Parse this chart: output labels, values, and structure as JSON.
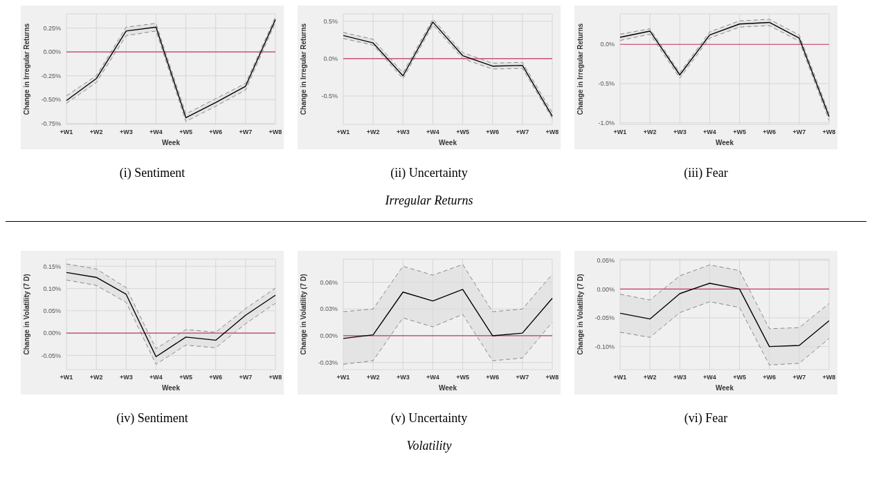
{
  "chart_data": [
    {
      "type": "line",
      "xlabel": "Week",
      "ylabel": "Change in Irregular Returns",
      "categories": [
        "+W1",
        "+W2",
        "+W3",
        "+W4",
        "+W5",
        "+W6",
        "+W7",
        "+W8"
      ],
      "ylim": [
        -0.76,
        0.4
      ],
      "yticks": [
        {
          "value": -0.75,
          "label": "-0.75%"
        },
        {
          "value": -0.5,
          "label": "-0.50%"
        },
        {
          "value": -0.25,
          "label": "-0.25%"
        },
        {
          "value": 0,
          "label": "0.00%"
        },
        {
          "value": 0.25,
          "label": "0.25%"
        }
      ],
      "grid": true,
      "marker": "none",
      "line_style": "solid",
      "ref_lines": [
        {
          "axis": "y",
          "value": 0,
          "color": "#c8336a"
        }
      ],
      "annotations": [
        "(i) Sentiment"
      ],
      "series": [
        {
          "color": "#000000",
          "values": [
            -0.51,
            -0.28,
            0.22,
            0.26,
            -0.69,
            -0.53,
            -0.36,
            0.34
          ],
          "lower": [
            -0.54,
            -0.32,
            0.17,
            0.22,
            -0.73,
            -0.57,
            -0.4,
            0.31
          ],
          "upper": [
            -0.46,
            -0.25,
            0.26,
            0.3,
            -0.65,
            -0.49,
            -0.33,
            0.37
          ]
        },
        {
          "type": "line",
          "color": "#888888",
          "line_style": "dashed",
          "values": [
            -0.54,
            -0.32,
            0.17,
            0.22,
            -0.73,
            -0.57,
            -0.4,
            0.31
          ]
        },
        {
          "type": "line",
          "color": "#888888",
          "line_style": "dashed",
          "values": [
            -0.46,
            -0.25,
            0.26,
            0.3,
            -0.65,
            -0.49,
            -0.33,
            0.37
          ]
        }
      ]
    },
    {
      "type": "line",
      "xlabel": "Week",
      "ylabel": "Change in Irregular Returns",
      "categories": [
        "+W1",
        "+W2",
        "+W3",
        "+W4",
        "+W5",
        "+W6",
        "+W7",
        "+W8"
      ],
      "ylim": [
        -0.88,
        0.6
      ],
      "yticks": [
        {
          "value": -0.5,
          "label": "-0.5%"
        },
        {
          "value": 0,
          "label": "0.0%"
        },
        {
          "value": 0.5,
          "label": "0.5%"
        }
      ],
      "grid": true,
      "marker": "none",
      "line_style": "solid",
      "ref_lines": [
        {
          "axis": "y",
          "value": 0,
          "color": "#c8336a"
        }
      ],
      "annotations": [
        "(ii) Uncertainty",
        "Irregular Returns"
      ],
      "series": [
        {
          "color": "#000000",
          "values": [
            0.31,
            0.21,
            -0.23,
            0.49,
            0.04,
            -0.1,
            -0.09,
            -0.77
          ],
          "lower": [
            0.27,
            0.18,
            -0.27,
            0.45,
            0.0,
            -0.14,
            -0.13,
            -0.8
          ],
          "upper": [
            0.35,
            0.26,
            -0.19,
            0.53,
            0.08,
            -0.06,
            -0.05,
            -0.72
          ]
        },
        {
          "type": "line",
          "color": "#888888",
          "line_style": "dashed",
          "values": [
            0.27,
            0.18,
            -0.27,
            0.45,
            0.0,
            -0.14,
            -0.13,
            -0.8
          ]
        },
        {
          "type": "line",
          "color": "#888888",
          "line_style": "dashed",
          "values": [
            0.35,
            0.26,
            -0.19,
            0.53,
            0.08,
            -0.06,
            -0.05,
            -0.72
          ]
        }
      ]
    },
    {
      "type": "line",
      "xlabel": "Week",
      "ylabel": "Change in Irregular Returns",
      "categories": [
        "+W1",
        "+W2",
        "+W3",
        "+W4",
        "+W5",
        "+W6",
        "+W7",
        "+W8"
      ],
      "ylim": [
        -1.02,
        0.39
      ],
      "yticks": [
        {
          "value": -1,
          "label": "-1.0%"
        },
        {
          "value": -0.5,
          "label": "-0.5%"
        },
        {
          "value": 0,
          "label": "0.0%"
        }
      ],
      "grid": true,
      "marker": "none",
      "line_style": "solid",
      "ref_lines": [
        {
          "axis": "y",
          "value": 0,
          "color": "#c8336a"
        }
      ],
      "annotations": [
        "(iii) Fear"
      ],
      "series": [
        {
          "color": "#000000",
          "values": [
            0.09,
            0.17,
            -0.39,
            0.12,
            0.26,
            0.28,
            0.08,
            -0.92
          ],
          "lower": [
            0.05,
            0.13,
            -0.43,
            0.08,
            0.22,
            0.24,
            0.04,
            -0.97
          ],
          "upper": [
            0.13,
            0.2,
            -0.36,
            0.16,
            0.3,
            0.32,
            0.12,
            -0.88
          ]
        },
        {
          "type": "line",
          "color": "#888888",
          "line_style": "dashed",
          "values": [
            0.05,
            0.13,
            -0.43,
            0.08,
            0.22,
            0.24,
            0.04,
            -0.97
          ]
        },
        {
          "type": "line",
          "color": "#888888",
          "line_style": "dashed",
          "values": [
            0.13,
            0.2,
            -0.36,
            0.16,
            0.3,
            0.32,
            0.12,
            -0.88
          ]
        }
      ]
    },
    {
      "type": "line",
      "xlabel": "Week",
      "ylabel": "Change in Volatility (7 D)",
      "categories": [
        "+W1",
        "+W2",
        "+W3",
        "+W4",
        "+W5",
        "+W6",
        "+W7",
        "+W8"
      ],
      "ylim": [
        -0.082,
        0.166
      ],
      "yticks": [
        {
          "value": -0.05,
          "label": "-0.05%"
        },
        {
          "value": 0,
          "label": "0.00%"
        },
        {
          "value": 0.05,
          "label": "0.05%"
        },
        {
          "value": 0.1,
          "label": "0.10%"
        },
        {
          "value": 0.15,
          "label": "0.15%"
        }
      ],
      "grid": true,
      "marker": "none",
      "line_style": "solid",
      "ref_lines": [
        {
          "axis": "y",
          "value": 0,
          "color": "#c8336a"
        }
      ],
      "annotations": [
        "(iv) Sentiment"
      ],
      "series": [
        {
          "color": "#000000",
          "values": [
            0.136,
            0.125,
            0.087,
            -0.053,
            -0.009,
            -0.016,
            0.04,
            0.085
          ],
          "lower": [
            0.119,
            0.107,
            0.069,
            -0.07,
            -0.027,
            -0.033,
            0.021,
            0.067
          ],
          "upper": [
            0.155,
            0.144,
            0.102,
            -0.035,
            0.008,
            0.002,
            0.055,
            0.101
          ]
        },
        {
          "type": "line",
          "color": "#888888",
          "line_style": "dashed",
          "values": [
            0.119,
            0.107,
            0.069,
            -0.07,
            -0.027,
            -0.033,
            0.021,
            0.067
          ]
        },
        {
          "type": "line",
          "color": "#888888",
          "line_style": "dashed",
          "values": [
            0.155,
            0.144,
            0.102,
            -0.035,
            0.008,
            0.002,
            0.055,
            0.101
          ]
        }
      ]
    },
    {
      "type": "line",
      "xlabel": "Week",
      "ylabel": "Change in Volatility (7 D)",
      "categories": [
        "+W1",
        "+W2",
        "+W3",
        "+W4",
        "+W5",
        "+W6",
        "+W7",
        "+W8"
      ],
      "ylim": [
        -0.038,
        0.086
      ],
      "yticks": [
        {
          "value": -0.03,
          "label": "-0.03%"
        },
        {
          "value": 0,
          "label": "0.00%"
        },
        {
          "value": 0.03,
          "label": "0.03%"
        },
        {
          "value": 0.06,
          "label": "0.06%"
        }
      ],
      "grid": true,
      "marker": "none",
      "line_style": "solid",
      "ref_lines": [
        {
          "axis": "y",
          "value": 0,
          "color": "#c8336a"
        }
      ],
      "annotations": [
        "(v) Uncertainty",
        "Volatility"
      ],
      "series": [
        {
          "color": "#000000",
          "values": [
            -0.003,
            0.001,
            0.049,
            0.039,
            0.052,
            0.0,
            0.003,
            0.042
          ],
          "lower": [
            -0.032,
            -0.028,
            0.02,
            0.01,
            0.024,
            -0.028,
            -0.025,
            0.015
          ],
          "upper": [
            0.027,
            0.03,
            0.078,
            0.068,
            0.08,
            0.027,
            0.03,
            0.069
          ]
        },
        {
          "type": "line",
          "color": "#888888",
          "line_style": "dashed",
          "values": [
            -0.032,
            -0.028,
            0.02,
            0.01,
            0.024,
            -0.028,
            -0.025,
            0.015
          ]
        },
        {
          "type": "line",
          "color": "#888888",
          "line_style": "dashed",
          "values": [
            0.027,
            0.03,
            0.078,
            0.068,
            0.08,
            0.027,
            0.03,
            0.069
          ]
        }
      ]
    },
    {
      "type": "line",
      "xlabel": "Week",
      "ylabel": "Change in Volatility (7 D)",
      "categories": [
        "+W1",
        "+W2",
        "+W3",
        "+W4",
        "+W5",
        "+W6",
        "+W7",
        "+W8"
      ],
      "ylim": [
        -0.14,
        0.052
      ],
      "yticks": [
        {
          "value": -0.1,
          "label": "-0.10%"
        },
        {
          "value": -0.05,
          "label": "-0.05%"
        },
        {
          "value": 0,
          "label": "0.00%"
        },
        {
          "value": 0.05,
          "label": "0.05%"
        }
      ],
      "grid": true,
      "marker": "none",
      "line_style": "solid",
      "ref_lines": [
        {
          "axis": "y",
          "value": 0,
          "color": "#c8336a"
        }
      ],
      "annotations": [
        "(vi) Fear"
      ],
      "series": [
        {
          "color": "#000000",
          "values": [
            -0.042,
            -0.052,
            -0.008,
            0.01,
            0.0,
            -0.1,
            -0.098,
            -0.055
          ],
          "lower": [
            -0.075,
            -0.084,
            -0.041,
            -0.022,
            -0.032,
            -0.132,
            -0.129,
            -0.086
          ],
          "upper": [
            -0.009,
            -0.019,
            0.023,
            0.042,
            0.032,
            -0.069,
            -0.067,
            -0.025
          ]
        },
        {
          "type": "line",
          "color": "#888888",
          "line_style": "dashed",
          "values": [
            -0.075,
            -0.084,
            -0.041,
            -0.022,
            -0.032,
            -0.132,
            -0.129,
            -0.086
          ]
        },
        {
          "type": "line",
          "color": "#888888",
          "line_style": "dashed",
          "values": [
            -0.009,
            -0.019,
            0.023,
            0.042,
            0.032,
            -0.069,
            -0.067,
            -0.025
          ]
        }
      ]
    }
  ]
}
